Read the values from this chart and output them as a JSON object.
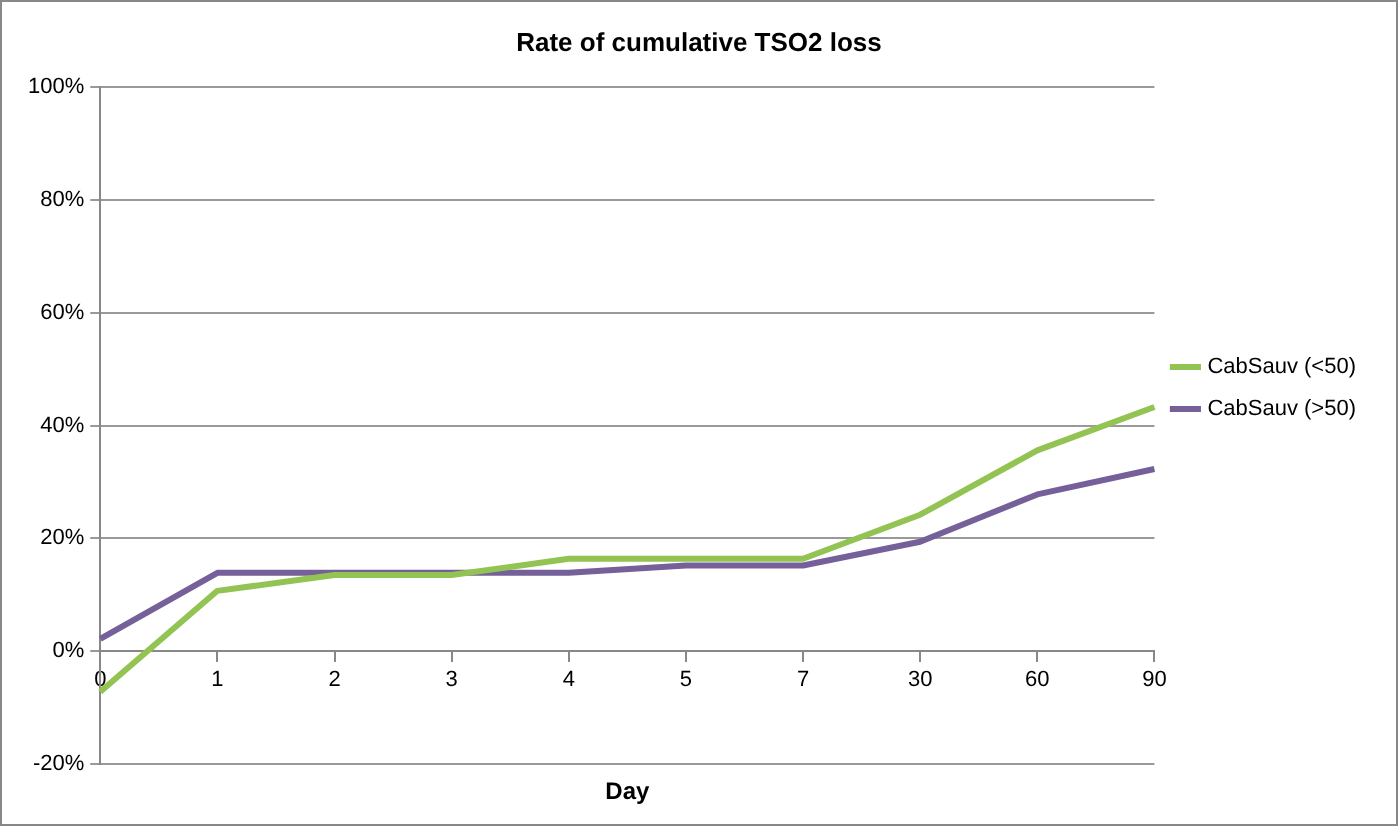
{
  "chart_data": {
    "type": "line",
    "title": "Rate of cumulative TSO2 loss",
    "xlabel": "Day",
    "categories": [
      "0",
      "1",
      "2",
      "3",
      "4",
      "5",
      "7",
      "30",
      "60",
      "90"
    ],
    "series": [
      {
        "name": "CabSauv (<50)",
        "color": "#92c353",
        "values": [
          -7.2,
          10.7,
          13.5,
          13.5,
          16.4,
          16.4,
          16.4,
          24.2,
          35.6,
          43.3
        ]
      },
      {
        "name": "CabSauv (>50)",
        "color": "#76609a",
        "values": [
          2.2,
          13.9,
          13.9,
          13.9,
          13.9,
          15.2,
          15.2,
          19.4,
          27.8,
          32.3
        ]
      }
    ],
    "ylim": [
      -20,
      100
    ],
    "yticks": [
      {
        "value": -20,
        "label": "-20%"
      },
      {
        "value": 0,
        "label": "0%"
      },
      {
        "value": 20,
        "label": "20%"
      },
      {
        "value": 40,
        "label": "40%"
      },
      {
        "value": 60,
        "label": "60%"
      },
      {
        "value": 80,
        "label": "80%"
      },
      {
        "value": 100,
        "label": "100%"
      }
    ],
    "grid": "y",
    "legend": "right",
    "marker": "none",
    "line_style": "solid"
  }
}
